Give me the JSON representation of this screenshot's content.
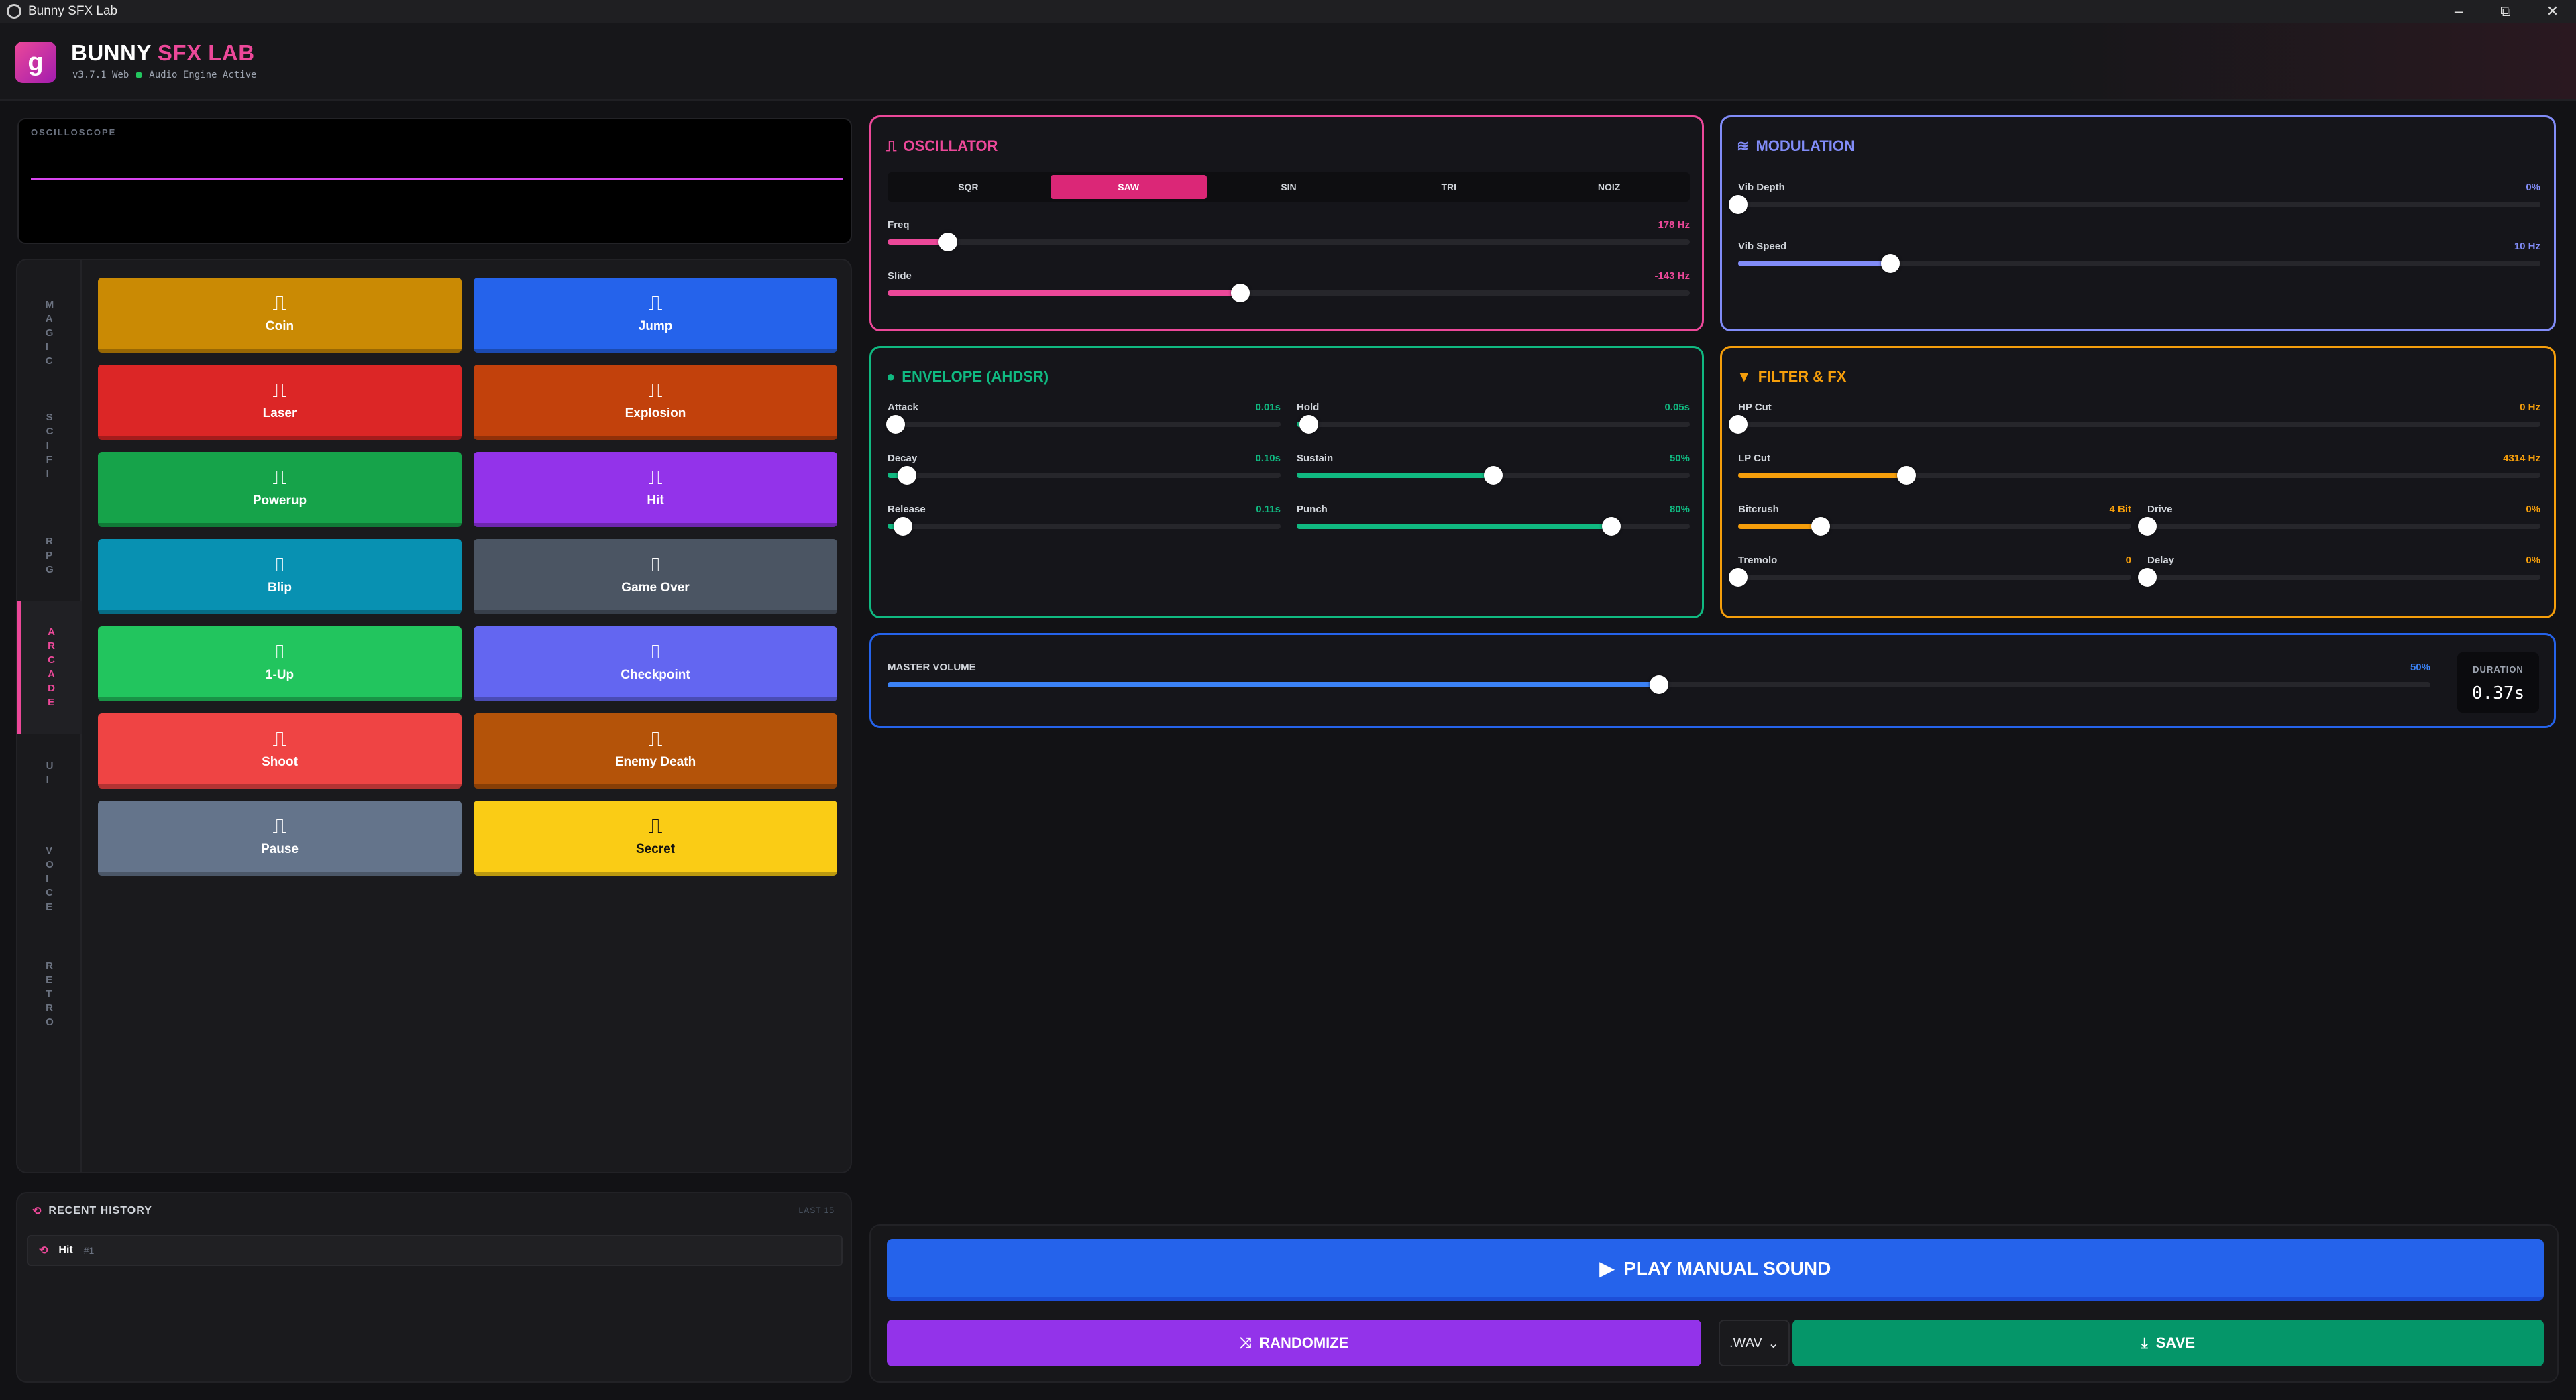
{
  "window": {
    "title": "Bunny SFX Lab",
    "min": "–",
    "restore": "⧉",
    "close": "✕"
  },
  "header": {
    "logo_glyph": "g",
    "brand_main": "BUNNY",
    "brand_accent": "SFX LAB",
    "version": "v3.7.1 Web",
    "status": "Audio Engine Active"
  },
  "oscilloscope": {
    "label": "OSCILLOSCOPE"
  },
  "categories": [
    "MAGIC",
    "SCIFI",
    "RPG",
    "ARCADE",
    "UI",
    "VOICE",
    "RETRO"
  ],
  "active_category": "ARCADE",
  "presets": [
    {
      "label": "Coin",
      "color": "#ca8a04"
    },
    {
      "label": "Jump",
      "color": "#2563eb"
    },
    {
      "label": "Laser",
      "color": "#dc2626"
    },
    {
      "label": "Explosion",
      "color": "#c2410c"
    },
    {
      "label": "Powerup",
      "color": "#16a34a"
    },
    {
      "label": "Hit",
      "color": "#9333ea"
    },
    {
      "label": "Blip",
      "color": "#0891b2"
    },
    {
      "label": "Game Over",
      "color": "#4b5563"
    },
    {
      "label": "1-Up",
      "color": "#22c55e"
    },
    {
      "label": "Checkpoint",
      "color": "#6366f1"
    },
    {
      "label": "Shoot",
      "color": "#ef4444"
    },
    {
      "label": "Enemy Death",
      "color": "#b45309"
    },
    {
      "label": "Pause",
      "color": "#64748b"
    },
    {
      "label": "Secret",
      "color": "#facc15"
    }
  ],
  "preset_icon": "⎍",
  "history": {
    "title": "RECENT HISTORY",
    "limit_label": "LAST 15",
    "items": [
      {
        "label": "Hit",
        "index": "#1"
      }
    ]
  },
  "oscillator": {
    "title": "OSCILLATOR",
    "color": "#ec4899",
    "waveforms": [
      "SQR",
      "SAW",
      "SIN",
      "TRI",
      "NOIZ"
    ],
    "selected": "SAW",
    "sliders": [
      {
        "name": "Freq",
        "value": "178 Hz",
        "level": 0.075
      },
      {
        "name": "Slide",
        "value": "-143 Hz",
        "level": 0.44
      }
    ]
  },
  "modulation": {
    "title": "MODULATION",
    "color": "#818cf8",
    "sliders": [
      {
        "name": "Vib Depth",
        "value": "0%",
        "level": 0.0
      },
      {
        "name": "Vib Speed",
        "value": "10 Hz",
        "level": 0.19
      }
    ]
  },
  "envelope": {
    "title": "ENVELOPE (AHDSR)",
    "color": "#10b981",
    "sliders": [
      {
        "name": "Attack",
        "value": "0.01s",
        "level": 0.02
      },
      {
        "name": "Hold",
        "value": "0.05s",
        "level": 0.03
      },
      {
        "name": "Decay",
        "value": "0.10s",
        "level": 0.05
      },
      {
        "name": "Sustain",
        "value": "50%",
        "level": 0.5
      },
      {
        "name": "Release",
        "value": "0.11s",
        "level": 0.04
      },
      {
        "name": "Punch",
        "value": "80%",
        "level": 0.8
      }
    ]
  },
  "filter": {
    "title": "FILTER & FX",
    "color": "#f59e0b",
    "sliders": [
      {
        "name": "HP Cut",
        "value": "0 Hz",
        "level": 0.0
      },
      {
        "name": "LP Cut",
        "value": "4314 Hz",
        "level": 0.21
      },
      {
        "name": "Bitcrush",
        "value": "4 Bit",
        "level": 0.21
      },
      {
        "name": "Drive",
        "value": "0%",
        "level": 0.0
      },
      {
        "name": "Tremolo",
        "value": "0",
        "level": 0.0
      },
      {
        "name": "Delay",
        "value": "0%",
        "level": 0.0
      }
    ]
  },
  "master": {
    "label": "MASTER VOLUME",
    "value": "50%",
    "level": 0.5,
    "color": "#3b82f6",
    "duration_label": "DURATION",
    "duration_value": "0.37s"
  },
  "actions": {
    "play_label": "PLAY MANUAL SOUND",
    "randomize_label": "RANDOMIZE",
    "format": ".WAV",
    "save_label": "SAVE"
  }
}
